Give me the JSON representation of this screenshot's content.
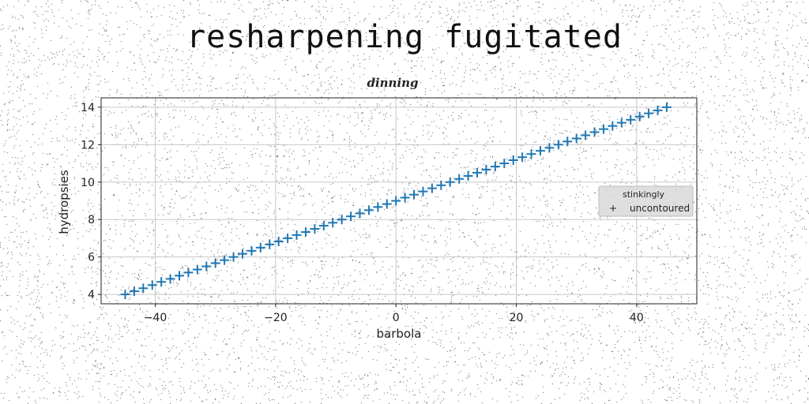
{
  "page": {
    "title": "resharpening fugitated"
  },
  "chart_data": {
    "type": "scatter",
    "title": "dinning",
    "xlabel": "barbola",
    "ylabel": "hydropsies",
    "xlim": [
      -49,
      50
    ],
    "ylim": [
      3.5,
      14.5
    ],
    "xticks": [
      -40,
      -20,
      0,
      20,
      40
    ],
    "xtick_labels": [
      "−40",
      "−20",
      "0",
      "20",
      "40"
    ],
    "yticks": [
      4,
      6,
      8,
      10,
      12,
      14
    ],
    "ytick_labels": [
      "4",
      "6",
      "8",
      "10",
      "12",
      "14"
    ],
    "grid": true,
    "legend_position": "center-right",
    "legend": [
      {
        "label": "stinkingly",
        "marker": "none"
      },
      {
        "label": "uncontoured",
        "marker": "plus"
      }
    ],
    "series": [
      {
        "name": "uncontoured",
        "marker": "+",
        "color": "#1f77b4",
        "x": [
          -45,
          -43.5,
          -42,
          -40.5,
          -39,
          -37.5,
          -36,
          -34.5,
          -33,
          -31.5,
          -30,
          -28.5,
          -27,
          -25.5,
          -24,
          -22.5,
          -21,
          -19.5,
          -18,
          -16.5,
          -15,
          -13.5,
          -12,
          -10.5,
          -9,
          -7.5,
          -6,
          -4.5,
          -3,
          -1.5,
          0,
          1.5,
          3,
          4.5,
          6,
          7.5,
          9,
          10.5,
          12,
          13.5,
          15,
          16.5,
          18,
          19.5,
          21,
          22.5,
          24,
          25.5,
          27,
          28.5,
          30,
          31.5,
          33,
          34.5,
          36,
          37.5,
          39,
          40.5,
          42,
          43.5,
          45
        ],
        "y": [
          4.0,
          4.17,
          4.33,
          4.5,
          4.67,
          4.83,
          5.0,
          5.17,
          5.33,
          5.5,
          5.67,
          5.83,
          6.0,
          6.17,
          6.33,
          6.5,
          6.67,
          6.83,
          7.0,
          7.17,
          7.33,
          7.5,
          7.67,
          7.83,
          8.0,
          8.17,
          8.33,
          8.5,
          8.67,
          8.83,
          9.0,
          9.17,
          9.33,
          9.5,
          9.67,
          9.83,
          10.0,
          10.17,
          10.33,
          10.5,
          10.67,
          10.83,
          11.0,
          11.17,
          11.33,
          11.5,
          11.67,
          11.83,
          12.0,
          12.17,
          12.33,
          12.5,
          12.67,
          12.83,
          13.0,
          13.17,
          13.33,
          13.5,
          13.67,
          13.83,
          14.0
        ]
      }
    ]
  }
}
